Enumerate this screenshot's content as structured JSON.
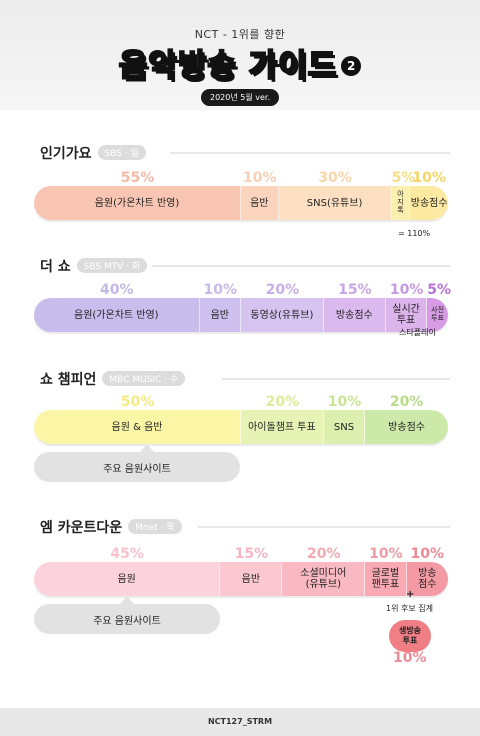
{
  "header": {
    "subtitle": "NCT - 1위를 향한",
    "title": "음악방송 가이드",
    "part": "2",
    "version": "2020년 5월 ver."
  },
  "sections": [
    {
      "title": "인기가요",
      "sub": "SBS · 일",
      "segments": [
        {
          "label": "음원(가온차트 반영)",
          "pct": "55%",
          "share": 55,
          "color": "#f8c5b3"
        },
        {
          "label": "음반",
          "pct": "10%",
          "share": 10,
          "color": "#fbd4bd"
        },
        {
          "label": "SNS(유튜브)",
          "pct": "30%",
          "share": 30,
          "color": "#fde0c2"
        },
        {
          "label": "아\n지\n톡",
          "pct": "5%",
          "share": 5,
          "color": "#fbefb0"
        },
        {
          "label": "방송점수",
          "pct": "10%",
          "share": 10,
          "color": "#fdeaa2"
        }
      ],
      "pct_colors": [
        "#f5b9a6",
        "#f8cfb5",
        "#f6d5a8",
        "#f6dd84",
        "#f6d466"
      ],
      "note": "= 110%"
    },
    {
      "title": "더 쇼",
      "sub": "SBS MTV · 화",
      "segments": [
        {
          "label": "음원(가온차트 반영)",
          "pct": "40%",
          "share": 40,
          "color": "#c9bdee"
        },
        {
          "label": "음반",
          "pct": "10%",
          "share": 10,
          "color": "#cdbfee"
        },
        {
          "label": "동영상(유튜브)",
          "pct": "20%",
          "share": 20,
          "color": "#d6c3f0"
        },
        {
          "label": "방송점수",
          "pct": "15%",
          "share": 15,
          "color": "#dab9ee"
        },
        {
          "label": "실시간\n투표",
          "pct": "10%",
          "share": 10,
          "color": "#dcb4ec"
        },
        {
          "label": "사전\n투표",
          "pct": "5%",
          "share": 5,
          "color": "#d79be5"
        }
      ],
      "pct_colors": [
        "#c3b7e9",
        "#c9b9ea",
        "#c8aee9",
        "#c9a5e6",
        "#c59ae2",
        "#b772d8"
      ],
      "note": "스타플레이"
    },
    {
      "title": "쇼 챔피언",
      "sub": "MBC MUSIC · 수",
      "segments": [
        {
          "label": "음원 & 음반",
          "pct": "50%",
          "share": 50,
          "color": "#fbf6a6"
        },
        {
          "label": "아이돌챔프 투표",
          "pct": "20%",
          "share": 20,
          "color": "#e7f3b4"
        },
        {
          "label": "SNS",
          "pct": "10%",
          "share": 10,
          "color": "#dcefaf"
        },
        {
          "label": "방송점수",
          "pct": "20%",
          "share": 20,
          "color": "#cde9a9"
        }
      ],
      "pct_colors": [
        "#f5ec7d",
        "#dcec98",
        "#c8e594",
        "#b7dc88"
      ],
      "pill": "주요 음원사이트"
    },
    {
      "title": "엠 카운트다운",
      "sub": "Mnet · 목",
      "segments": [
        {
          "label": "음원",
          "pct": "45%",
          "share": 45,
          "color": "#fcd3dc"
        },
        {
          "label": "음반",
          "pct": "15%",
          "share": 15,
          "color": "#fbc7d0"
        },
        {
          "label": "소셜미디어\n(유튜브)",
          "pct": "20%",
          "share": 20,
          "color": "#f9b9c2"
        },
        {
          "label": "글로벌\n팬투표",
          "pct": "10%",
          "share": 10,
          "color": "#f8a9b3"
        },
        {
          "label": "방송\n점수",
          "pct": "10%",
          "share": 10,
          "color": "#f39aa4"
        }
      ],
      "pct_colors": [
        "#f8c2cd",
        "#f6b5c0",
        "#f4a9b3",
        "#f29aa4",
        "#ef8a95"
      ],
      "pill": "주요 음원사이트",
      "plus": "+",
      "extra_note": "1위 후보 집계",
      "live_vote": "생방송\n투표",
      "live_pct": "10%"
    }
  ],
  "footer": "NCT127_STRM"
}
